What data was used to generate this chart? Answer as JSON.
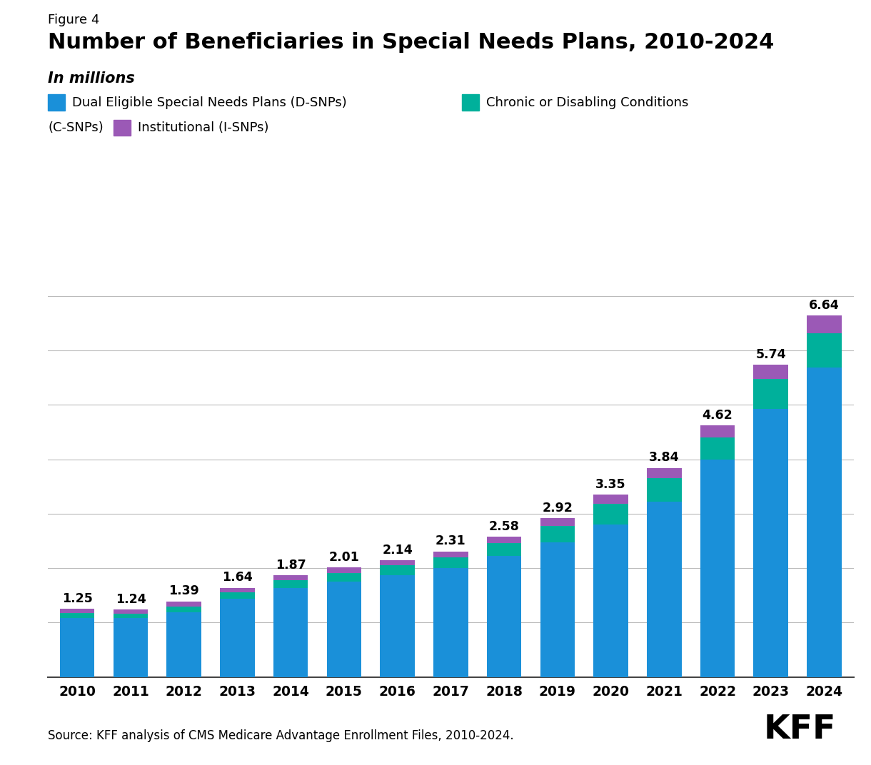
{
  "years": [
    2010,
    2011,
    2012,
    2013,
    2014,
    2015,
    2016,
    2017,
    2018,
    2019,
    2020,
    2021,
    2022,
    2023,
    2024
  ],
  "totals": [
    1.25,
    1.24,
    1.39,
    1.64,
    1.87,
    2.01,
    2.14,
    2.31,
    2.58,
    2.92,
    3.35,
    3.84,
    4.62,
    5.74,
    6.64
  ],
  "dsnp": [
    1.09,
    1.08,
    1.19,
    1.44,
    1.64,
    1.75,
    1.87,
    2.0,
    2.22,
    2.48,
    2.8,
    3.22,
    4.0,
    4.92,
    5.68
  ],
  "csnp": [
    0.08,
    0.08,
    0.11,
    0.12,
    0.14,
    0.16,
    0.18,
    0.2,
    0.24,
    0.3,
    0.38,
    0.43,
    0.4,
    0.56,
    0.64
  ],
  "isnp": [
    0.08,
    0.08,
    0.09,
    0.08,
    0.09,
    0.1,
    0.09,
    0.11,
    0.12,
    0.14,
    0.17,
    0.19,
    0.22,
    0.26,
    0.32
  ],
  "dsnp_color": "#1a90d9",
  "csnp_color": "#00b09b",
  "isnp_color": "#9b59b6",
  "figure_label": "Figure 4",
  "title": "Number of Beneficiaries in Special Needs Plans, 2010-2024",
  "subtitle": "In millions",
  "legend_dsnp": "Dual Eligible Special Needs Plans (D-SNPs)",
  "legend_csnp_line1": "Chronic or Disabling Conditions",
  "legend_csnp_line2": "(C-SNPs)",
  "legend_isnp": "Institutional (I-SNPs)",
  "source_text": "Source: KFF analysis of CMS Medicare Advantage Enrollment Files, 2010-2024.",
  "kff_text": "KFF",
  "ylim_max": 7.8,
  "yticks": [
    0,
    1,
    2,
    3,
    4,
    5,
    6,
    7
  ],
  "grid_color": "#bbbbbb",
  "background_color": "#ffffff",
  "bar_width": 0.65
}
